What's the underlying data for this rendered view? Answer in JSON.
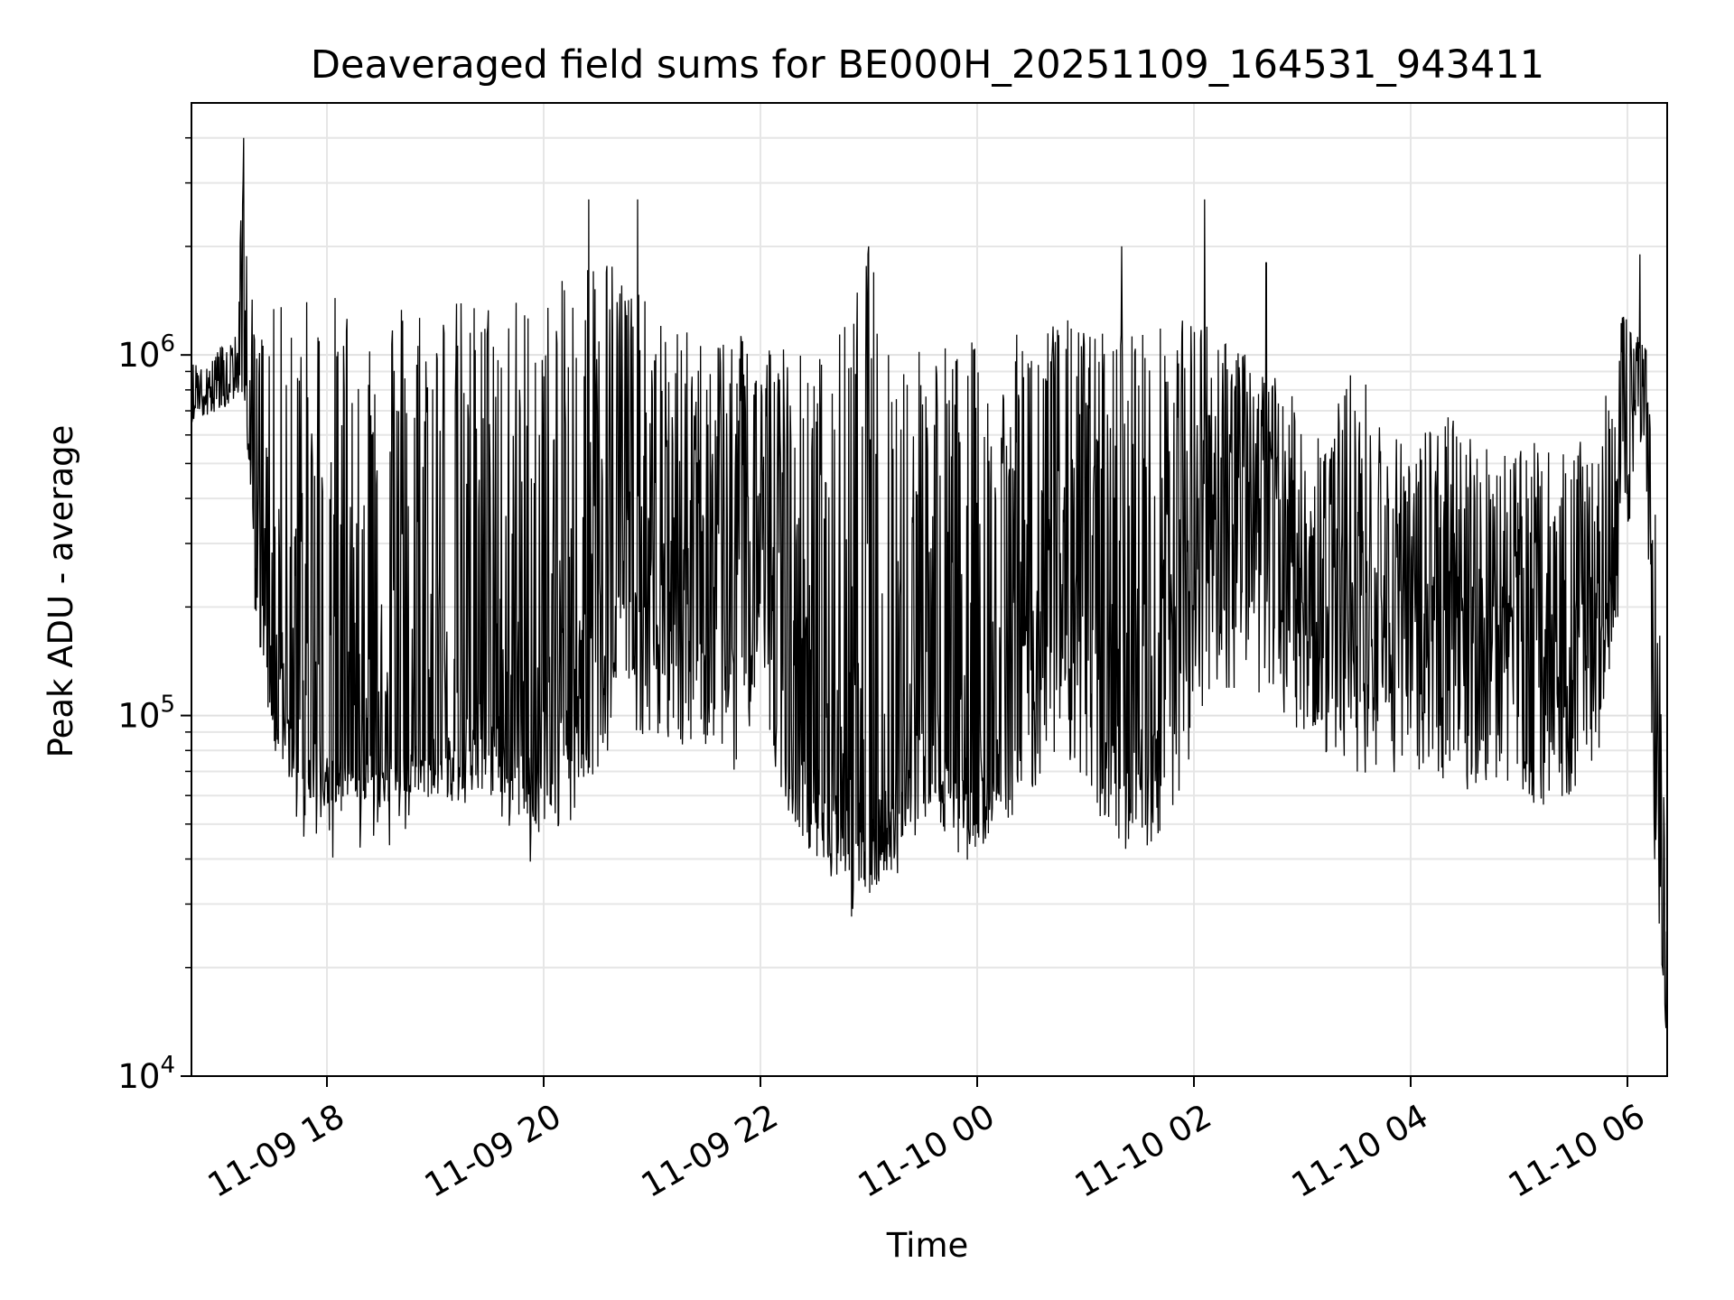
{
  "chart_data": {
    "type": "line",
    "title": "Deaveraged field sums for BE000H_20251109_164531_943411",
    "xlabel": "Time",
    "ylabel": "Peak ADU - average",
    "yscale": "log",
    "ylim": [
      10000,
      5000000
    ],
    "xlim": [
      "2025-11-09 16:45",
      "2025-11-10 06:22"
    ],
    "grid": true,
    "x_ticks": [
      {
        "value": "2025-11-09 18:00",
        "label": "11-09 18"
      },
      {
        "value": "2025-11-09 20:00",
        "label": "11-09 20"
      },
      {
        "value": "2025-11-09 22:00",
        "label": "11-09 22"
      },
      {
        "value": "2025-11-10 00:00",
        "label": "11-10 00"
      },
      {
        "value": "2025-11-10 02:00",
        "label": "11-10 02"
      },
      {
        "value": "2025-11-10 04:00",
        "label": "11-10 04"
      },
      {
        "value": "2025-11-10 06:00",
        "label": "11-10 06"
      }
    ],
    "y_ticks": [
      {
        "value": 10000,
        "base": "10",
        "exp": "4"
      },
      {
        "value": 100000,
        "base": "10",
        "exp": "5"
      },
      {
        "value": 1000000,
        "base": "10",
        "exp": "6"
      }
    ],
    "line_color": "#000000",
    "series": [
      {
        "x": [
          "2025-11-09 16:45",
          "2025-11-09 17:00",
          "2025-11-09 17:10",
          "2025-11-09 17:14",
          "2025-11-09 17:20",
          "2025-11-09 17:30",
          "2025-11-09 17:45",
          "2025-11-09 18:00",
          "2025-11-09 18:15",
          "2025-11-09 18:30",
          "2025-11-09 18:45",
          "2025-11-09 19:00",
          "2025-11-09 19:15",
          "2025-11-09 19:30",
          "2025-11-09 19:45",
          "2025-11-09 20:00",
          "2025-11-09 20:15",
          "2025-11-09 20:30",
          "2025-11-09 20:45",
          "2025-11-09 21:00",
          "2025-11-09 21:15",
          "2025-11-09 21:30",
          "2025-11-09 21:45",
          "2025-11-09 22:00",
          "2025-11-09 22:15",
          "2025-11-09 22:30",
          "2025-11-09 22:45",
          "2025-11-09 23:00",
          "2025-11-09 23:15",
          "2025-11-09 23:30",
          "2025-11-09 23:45",
          "2025-11-10 00:00",
          "2025-11-10 00:15",
          "2025-11-10 00:30",
          "2025-11-10 00:45",
          "2025-11-10 01:00",
          "2025-11-10 01:15",
          "2025-11-10 01:30",
          "2025-11-10 01:45",
          "2025-11-10 02:00",
          "2025-11-10 02:15",
          "2025-11-10 02:30",
          "2025-11-10 02:45",
          "2025-11-10 03:00",
          "2025-11-10 03:15",
          "2025-11-10 03:30",
          "2025-11-10 03:45",
          "2025-11-10 04:00",
          "2025-11-10 04:15",
          "2025-11-10 04:30",
          "2025-11-10 04:45",
          "2025-11-10 05:00",
          "2025-11-10 05:15",
          "2025-11-10 05:30",
          "2025-11-10 05:45",
          "2025-11-10 06:00",
          "2025-11-10 06:05",
          "2025-11-10 06:10",
          "2025-11-10 06:15",
          "2025-11-10 06:22"
        ],
        "y": [
          750000,
          850000,
          900000,
          1000000,
          450000,
          150000,
          80000,
          75000,
          80000,
          85000,
          80000,
          90000,
          100000,
          110000,
          80000,
          75000,
          150000,
          300000,
          250000,
          200000,
          220000,
          250000,
          200000,
          300000,
          150000,
          80000,
          60000,
          55000,
          65000,
          90000,
          80000,
          70000,
          130000,
          220000,
          200000,
          180000,
          120000,
          100000,
          150000,
          300000,
          450000,
          300000,
          250000,
          250000,
          200000,
          180000,
          160000,
          200000,
          170000,
          180000,
          200000,
          190000,
          120000,
          150000,
          200000,
          600000,
          900000,
          1000000,
          80000,
          15000
        ],
        "y_high": [
          950000,
          1050000,
          1150000,
          4000000,
          1100000,
          1350000,
          1500000,
          1500000,
          1500000,
          1550000,
          1550000,
          1500000,
          1450000,
          1500000,
          1500000,
          1450000,
          1700000,
          2100000,
          1800000,
          1300000,
          1200000,
          1100000,
          1300000,
          1200000,
          1100000,
          1000000,
          1200000,
          2000000,
          1100000,
          1200000,
          1100000,
          1100000,
          1100000,
          1200000,
          1300000,
          1200000,
          1200000,
          1300000,
          1200000,
          1300000,
          1200000,
          1000000,
          900000,
          700000,
          650000,
          1000000,
          650000,
          600000,
          700000,
          650000,
          550000,
          600000,
          550000,
          550000,
          650000,
          1500000,
          1200000,
          1100000,
          500000,
          40000
        ],
        "y_low": [
          650000,
          700000,
          750000,
          800000,
          200000,
          80000,
          60000,
          55000,
          60000,
          55000,
          60000,
          60000,
          55000,
          60000,
          50000,
          45000,
          50000,
          60000,
          80000,
          90000,
          80000,
          80000,
          70000,
          100000,
          55000,
          40000,
          36000,
          32000,
          38000,
          50000,
          55000,
          42000,
          50000,
          60000,
          80000,
          60000,
          45000,
          40000,
          50000,
          80000,
          120000,
          110000,
          100000,
          90000,
          75000,
          70000,
          68000,
          70000,
          65000,
          60000,
          65000,
          60000,
          55000,
          60000,
          80000,
          300000,
          500000,
          600000,
          40000,
          12000
        ],
        "spikes": [
          {
            "x": "2025-11-09 17:14",
            "y": 4000000
          },
          {
            "x": "2025-11-09 20:25",
            "y": 2700000
          },
          {
            "x": "2025-11-09 20:52",
            "y": 2700000
          },
          {
            "x": "2025-11-09 23:00",
            "y": 2000000
          },
          {
            "x": "2025-11-10 01:20",
            "y": 2000000
          },
          {
            "x": "2025-11-10 02:06",
            "y": 2700000
          },
          {
            "x": "2025-11-10 02:40",
            "y": 1800000
          },
          {
            "x": "2025-11-10 06:07",
            "y": 1900000
          }
        ]
      }
    ]
  }
}
